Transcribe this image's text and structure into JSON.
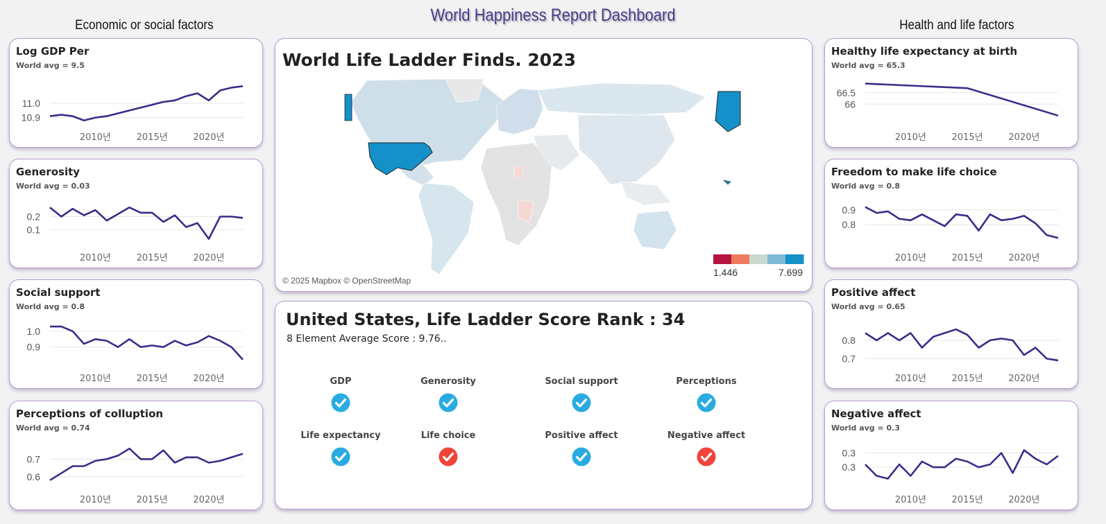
{
  "dashboard_title": "World Happiness Report Dashboard",
  "left_heading": "Economic or social factors",
  "right_heading": "Health and life factors",
  "colors": {
    "line": "#3c2a88",
    "card_border": "#b79cd3",
    "highlight_country": "#1491c8",
    "ok_icon": "#29abe2",
    "bad_icon": "#f0443a"
  },
  "map": {
    "title": "World Life Ladder Finds. 2023",
    "copyright": "© 2025 Mapbox © OpenStreetMap",
    "legend_min": "1.446",
    "legend_max": "7.699",
    "legend_colors": [
      "#b5143f",
      "#ef7a5f",
      "#c9d9d0",
      "#7ebad6",
      "#1491c8"
    ],
    "selected_country": "United States"
  },
  "rank_panel": {
    "title": "United States, Life Ladder Score Rank : 34",
    "avg_text": "8 Element Average Score : 9.76..",
    "elements": [
      {
        "label": "GDP",
        "status": "ok"
      },
      {
        "label": "Generosity",
        "status": "ok"
      },
      {
        "label": "Social support",
        "status": "ok"
      },
      {
        "label": "Perceptions",
        "status": "ok"
      },
      {
        "label": "Life expectancy",
        "status": "ok"
      },
      {
        "label": "Life choice",
        "status": "bad"
      },
      {
        "label": "Positive affect",
        "status": "ok"
      },
      {
        "label": "Negative affect",
        "status": "bad"
      }
    ]
  },
  "chart_data": [
    {
      "type": "line",
      "id": "gdp",
      "title": "Log GDP Per",
      "subtitle": "World avg = 9.5",
      "x": [
        2006,
        2007,
        2008,
        2009,
        2010,
        2011,
        2012,
        2013,
        2014,
        2015,
        2016,
        2017,
        2018,
        2019,
        2020,
        2021,
        2022,
        2023
      ],
      "values": [
        10.91,
        10.92,
        10.91,
        10.88,
        10.9,
        10.91,
        10.93,
        10.95,
        10.97,
        10.99,
        11.01,
        11.02,
        11.05,
        11.07,
        11.02,
        11.09,
        11.11,
        11.12
      ],
      "ylim": [
        10.85,
        11.17
      ],
      "yticks": [
        10.9,
        11.0
      ],
      "ytick_labels": [
        "10.9",
        "11.0"
      ],
      "xticks": [
        2010,
        2015,
        2020
      ],
      "xtick_labels": [
        "2010년",
        "2015년",
        "2020년"
      ]
    },
    {
      "type": "line",
      "id": "generosity",
      "title": "Generosity",
      "subtitle": "World avg = 0.03",
      "x": [
        2006,
        2007,
        2008,
        2009,
        2010,
        2011,
        2012,
        2013,
        2014,
        2015,
        2016,
        2017,
        2018,
        2019,
        2020,
        2021,
        2022,
        2023
      ],
      "values": [
        0.27,
        0.2,
        0.26,
        0.21,
        0.25,
        0.17,
        0.22,
        0.27,
        0.23,
        0.23,
        0.16,
        0.21,
        0.12,
        0.15,
        0.03,
        0.2,
        0.2,
        0.19
      ],
      "ylim": [
        -0.02,
        0.33
      ],
      "yticks": [
        0.1,
        0.2
      ],
      "ytick_labels": [
        "0.1",
        "0.2"
      ],
      "xticks": [
        2010,
        2015,
        2020
      ],
      "xtick_labels": [
        "2010년",
        "2015년",
        "2020년"
      ]
    },
    {
      "type": "line",
      "id": "social",
      "title": "Social support",
      "subtitle": "World avg = 0.8",
      "x": [
        2006,
        2007,
        2008,
        2009,
        2010,
        2011,
        2012,
        2013,
        2014,
        2015,
        2016,
        2017,
        2018,
        2019,
        2020,
        2021,
        2022,
        2023
      ],
      "values": [
        1.03,
        1.03,
        1.0,
        0.92,
        0.95,
        0.94,
        0.9,
        0.95,
        0.9,
        0.91,
        0.9,
        0.94,
        0.91,
        0.93,
        0.97,
        0.94,
        0.9,
        0.82
      ],
      "ylim": [
        0.78,
        1.07
      ],
      "yticks": [
        0.9,
        1.0
      ],
      "ytick_labels": [
        "0.9",
        "1.0"
      ],
      "xticks": [
        2010,
        2015,
        2020
      ],
      "xtick_labels": [
        "2010년",
        "2015년",
        "2020년"
      ]
    },
    {
      "type": "line",
      "id": "corruption",
      "title": "Perceptions of colluption",
      "subtitle": "World avg = 0.74",
      "x": [
        2006,
        2007,
        2008,
        2009,
        2010,
        2011,
        2012,
        2013,
        2014,
        2015,
        2016,
        2017,
        2018,
        2019,
        2020,
        2021,
        2022,
        2023
      ],
      "values": [
        0.58,
        0.62,
        0.66,
        0.66,
        0.69,
        0.7,
        0.72,
        0.76,
        0.7,
        0.7,
        0.75,
        0.68,
        0.71,
        0.71,
        0.68,
        0.69,
        0.71,
        0.73
      ],
      "ylim": [
        0.54,
        0.8
      ],
      "yticks": [
        0.6,
        0.7
      ],
      "ytick_labels": [
        "0.6",
        "0.7"
      ],
      "xticks": [
        2010,
        2015,
        2020
      ],
      "xtick_labels": [
        "2010년",
        "2015년",
        "2020년"
      ]
    },
    {
      "type": "line",
      "id": "life_exp",
      "title": "Healthy life expectancy at birth",
      "subtitle": "World avg = 65.3",
      "x": [
        2006,
        2015,
        2023
      ],
      "values": [
        66.9,
        66.7,
        65.5
      ],
      "ylim": [
        65.1,
        67.1
      ],
      "yticks": [
        66.0,
        66.5
      ],
      "ytick_labels": [
        "66",
        "66.5"
      ],
      "xticks": [
        2010,
        2015,
        2020
      ],
      "xtick_labels": [
        "2010년",
        "2015년",
        "2020년"
      ]
    },
    {
      "type": "line",
      "id": "freedom",
      "title": "Freedom to make life choice",
      "subtitle": "World avg = 0.8",
      "x": [
        2006,
        2007,
        2008,
        2009,
        2010,
        2011,
        2012,
        2013,
        2014,
        2015,
        2016,
        2017,
        2018,
        2019,
        2020,
        2021,
        2022,
        2023
      ],
      "values": [
        0.92,
        0.88,
        0.89,
        0.84,
        0.83,
        0.87,
        0.83,
        0.79,
        0.87,
        0.86,
        0.76,
        0.87,
        0.83,
        0.84,
        0.86,
        0.81,
        0.73,
        0.71
      ],
      "ylim": [
        0.66,
        0.97
      ],
      "yticks": [
        0.8,
        0.9
      ],
      "ytick_labels": [
        "0.8",
        "0.9"
      ],
      "xticks": [
        2010,
        2015,
        2020
      ],
      "xtick_labels": [
        "2010년",
        "2015년",
        "2020년"
      ]
    },
    {
      "type": "line",
      "id": "positive",
      "title": "Positive affect",
      "subtitle": "World avg = 0.65",
      "x": [
        2006,
        2007,
        2008,
        2009,
        2010,
        2011,
        2012,
        2013,
        2014,
        2015,
        2016,
        2017,
        2018,
        2019,
        2020,
        2021,
        2022,
        2023
      ],
      "values": [
        0.84,
        0.8,
        0.84,
        0.8,
        0.84,
        0.76,
        0.82,
        0.84,
        0.86,
        0.83,
        0.76,
        0.8,
        0.81,
        0.8,
        0.72,
        0.76,
        0.7,
        0.69
      ],
      "ylim": [
        0.66,
        0.91
      ],
      "yticks": [
        0.7,
        0.8
      ],
      "ytick_labels": [
        "0.7",
        "0.8"
      ],
      "xticks": [
        2010,
        2015,
        2020
      ],
      "xtick_labels": [
        "2010년",
        "2015년",
        "2020년"
      ]
    },
    {
      "type": "line",
      "id": "negative",
      "title": "Negative affect",
      "subtitle": "World avg = 0.3",
      "x": [
        2006,
        2007,
        2008,
        2009,
        2010,
        2011,
        2012,
        2013,
        2014,
        2015,
        2016,
        2017,
        2018,
        2019,
        2020,
        2021,
        2022,
        2023
      ],
      "values": [
        0.27,
        0.23,
        0.22,
        0.27,
        0.23,
        0.28,
        0.26,
        0.26,
        0.29,
        0.28,
        0.26,
        0.27,
        0.31,
        0.24,
        0.32,
        0.29,
        0.27,
        0.3
      ],
      "ylim": [
        0.19,
        0.35
      ],
      "yticks": [
        0.26,
        0.31
      ],
      "ytick_labels": [
        "0.3",
        "0.3"
      ],
      "xticks": [
        2010,
        2015,
        2020
      ],
      "xtick_labels": [
        "2010년",
        "2015년",
        "2020년"
      ]
    }
  ]
}
